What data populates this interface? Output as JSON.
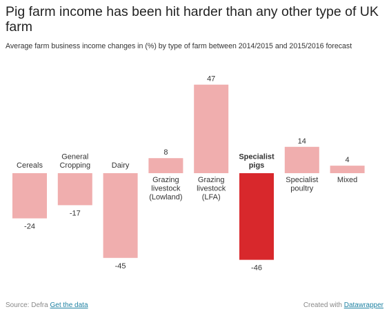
{
  "header": {
    "title": "Pig farm income has been hit harder than any other type of UK farm",
    "subtitle": "Average farm business income changes in (%) by type of farm between 2014/2015 and 2015/2016 forecast"
  },
  "footer": {
    "source_label": "Source: Defra",
    "get_data_label": "Get the data",
    "created_label": "Created with",
    "datawrapper_label": "Datawrapper"
  },
  "colors": {
    "bar_default": "#f0aeae",
    "bar_highlight": "#d8282c",
    "link": "#1d81a2"
  },
  "chart_data": {
    "type": "bar",
    "title": "Pig farm income has been hit harder than any other type of UK farm",
    "subtitle": "Average farm business income changes in (%) by type of farm between 2014/2015 and 2015/2016 forecast",
    "xlabel": "",
    "ylabel": "",
    "ylim": [
      -46,
      47
    ],
    "grid": false,
    "legend": "none",
    "highlight": "Specialist pigs",
    "categories": [
      [
        "Cereals"
      ],
      [
        "General",
        "Cropping"
      ],
      [
        "Dairy"
      ],
      [
        "Grazing",
        "livestock",
        "(Lowland)"
      ],
      [
        "Grazing",
        "livestock",
        "(LFA)"
      ],
      [
        "Specialist",
        "pigs"
      ],
      [
        "Specialist",
        "poultry"
      ],
      [
        "Mixed"
      ]
    ],
    "values": [
      -24,
      -17,
      -45,
      8,
      47,
      -46,
      14,
      4
    ]
  }
}
